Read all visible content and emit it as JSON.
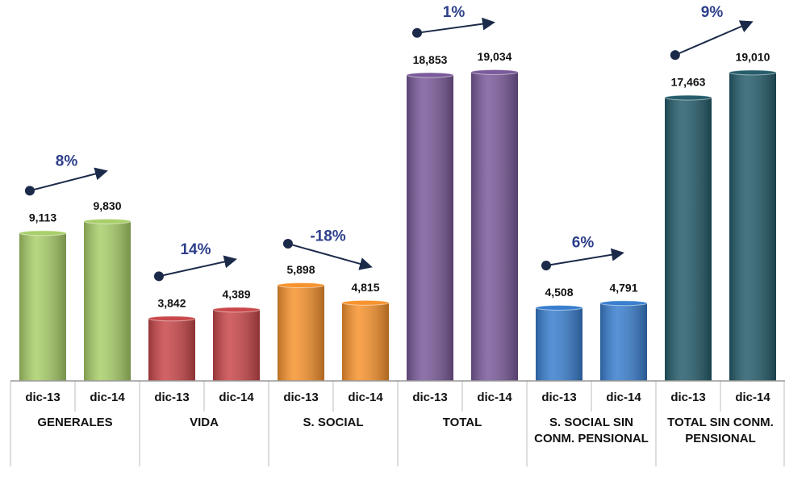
{
  "chart_data": {
    "type": "bar",
    "ylim": [
      0,
      20000
    ],
    "groups": [
      {
        "name": "GENERALES",
        "color": "#a9cf6a",
        "categories": [
          "dic-13",
          "dic-14"
        ],
        "values": [
          9113,
          9830
        ],
        "value_labels": [
          "9,113",
          "9,830"
        ],
        "change": "8%"
      },
      {
        "name": "VIDA",
        "color": "#c9474a",
        "categories": [
          "dic-13",
          "dic-14"
        ],
        "values": [
          3842,
          4389
        ],
        "value_labels": [
          "3,842",
          "4,389"
        ],
        "change": "14%"
      },
      {
        "name": "S. SOCIAL",
        "color": "#f7932e",
        "categories": [
          "dic-13",
          "dic-14"
        ],
        "values": [
          5898,
          4815
        ],
        "value_labels": [
          "5,898",
          "4,815"
        ],
        "change": "-18%"
      },
      {
        "name": "TOTAL",
        "color": "#7a5a9a",
        "categories": [
          "dic-13",
          "dic-14"
        ],
        "values": [
          18853,
          19034
        ],
        "value_labels": [
          "18,853",
          "19,034"
        ],
        "change": "1%"
      },
      {
        "name": "S. SOCIAL SIN CONM. PENSIONAL",
        "color": "#3a7fcf",
        "categories": [
          "dic-13",
          "dic-14"
        ],
        "values": [
          4508,
          4791
        ],
        "value_labels": [
          "4,508",
          "4,791"
        ],
        "change": "6%"
      },
      {
        "name": "TOTAL SIN CONM. PENSIONAL",
        "color": "#255d6b",
        "categories": [
          "dic-13",
          "dic-14"
        ],
        "values": [
          17463,
          19010
        ],
        "value_labels": [
          "17,463",
          "19,010"
        ],
        "change": "9%"
      }
    ]
  }
}
